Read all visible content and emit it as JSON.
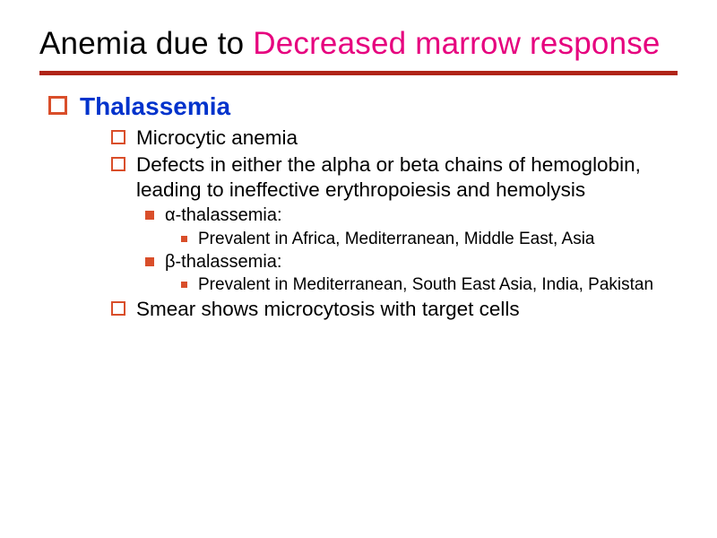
{
  "title": {
    "plain": "Anemia due to ",
    "accent": "Decreased marrow response"
  },
  "colors": {
    "title_plain": "#000000",
    "title_accent": "#e6007e",
    "rule": "#b02418",
    "bullet": "#d94e2a",
    "heading_text": "#0033cc",
    "body_text": "#000000",
    "background": "#ffffff"
  },
  "typography": {
    "title_fontsize": 35,
    "lvl1_fontsize": 28,
    "lvl2_fontsize": 22.5,
    "lvl3_fontsize": 20,
    "lvl4_fontsize": 19,
    "font_family": "Verdana"
  },
  "content": {
    "heading": "Thalassemia",
    "points": [
      "Microcytic anemia",
      "Defects in either the alpha or beta chains of hemoglobin, leading to ineffective erythropoiesis and hemolysis"
    ],
    "sub_a": {
      "label": "α-thalassemia:",
      "detail": "Prevalent in Africa, Mediterranean, Middle East, Asia"
    },
    "sub_b": {
      "label": "β-thalassemia:",
      "detail": "Prevalent in Mediterranean, South East Asia, India, Pakistan"
    },
    "final": "Smear shows microcytosis with target cells"
  }
}
